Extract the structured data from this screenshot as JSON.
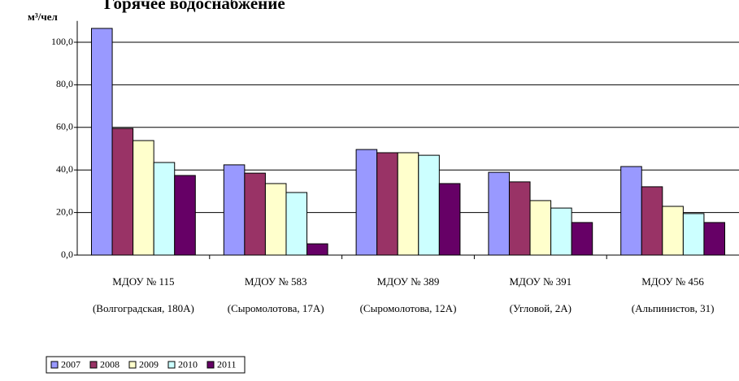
{
  "chart_data": {
    "type": "bar",
    "title": "Горячее водоснабжение",
    "y_label": "м³/чел",
    "categories": [
      [
        "МДОУ № 115",
        "(Волгоградская, 180А)"
      ],
      [
        "МДОУ № 583",
        "(Сыромолотова, 17А)"
      ],
      [
        "МДОУ № 389",
        "(Сыромолотова, 12А)"
      ],
      [
        "МДОУ № 391",
        "(Угловой, 2А)"
      ],
      [
        "МДОУ № 456",
        "(Альпинистов, 31)"
      ]
    ],
    "series": [
      {
        "name": "2007",
        "color": "#9999ff",
        "values": [
          106.5,
          42.4,
          49.6,
          38.9,
          41.6
        ]
      },
      {
        "name": "2008",
        "color": "#993366",
        "values": [
          59.5,
          38.5,
          48.1,
          34.4,
          32.1
        ]
      },
      {
        "name": "2009",
        "color": "#ffffcc",
        "values": [
          53.8,
          33.6,
          48.1,
          25.6,
          22.9
        ]
      },
      {
        "name": "2010",
        "color": "#ccffff",
        "values": [
          43.5,
          29.4,
          46.9,
          22.1,
          19.5
        ]
      },
      {
        "name": "2011",
        "color": "#660066",
        "values": [
          37.4,
          5.3,
          33.6,
          15.3,
          15.3
        ]
      }
    ],
    "ylim": [
      0,
      110
    ],
    "yticks": [
      {
        "value": 0,
        "label": "0,0"
      },
      {
        "value": 20,
        "label": "20,0"
      },
      {
        "value": 40,
        "label": "40,0"
      },
      {
        "value": 60,
        "label": "60,0"
      },
      {
        "value": 80,
        "label": "80,0"
      },
      {
        "value": 100,
        "label": "100,0"
      }
    ],
    "grid": true,
    "legend": "bottom-left"
  }
}
